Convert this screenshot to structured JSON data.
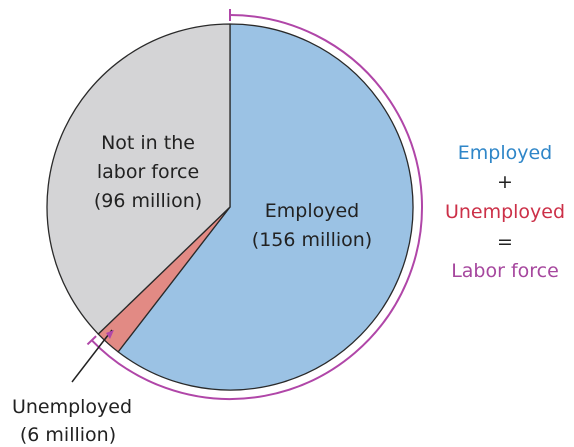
{
  "chart_data": {
    "type": "pie",
    "units": "million",
    "slices": [
      {
        "name": "Employed",
        "label_lines": [
          "Employed",
          "(156 million)"
        ],
        "value": 156,
        "color": "#9bc2e4"
      },
      {
        "name": "Unemployed",
        "label_lines": [
          "Unemployed",
          "(6 million)"
        ],
        "value": 6,
        "color": "#e28a84"
      },
      {
        "name": "Not in the labor force",
        "label_lines": [
          "Not in the",
          "labor force",
          "(96 million)"
        ],
        "value": 96,
        "color": "#d4d4d6"
      }
    ],
    "bracket": {
      "label": "Labor force",
      "color": "#b046a8",
      "covers": [
        "Employed",
        "Unemployed"
      ]
    },
    "equation": [
      {
        "text": "Employed",
        "color": "#2f86c8"
      },
      {
        "text": "+",
        "color": "#222222"
      },
      {
        "text": "Unemployed",
        "color": "#cc3048"
      },
      {
        "text": "=",
        "color": "#222222"
      },
      {
        "text": "Labor force",
        "color": "#a6479e"
      }
    ]
  }
}
